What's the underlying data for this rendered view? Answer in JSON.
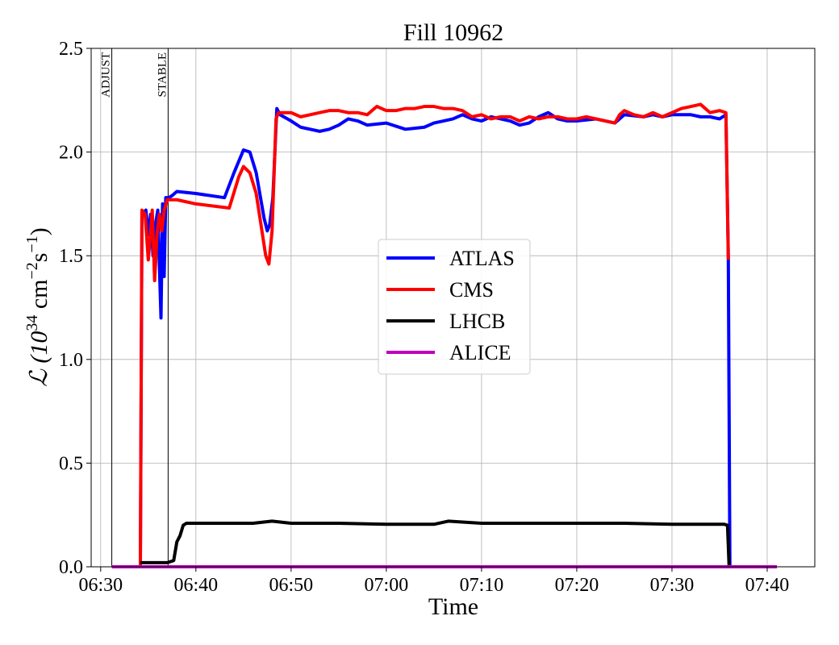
{
  "chart_data": {
    "type": "line",
    "title": "Fill 10962",
    "xlabel": "Time",
    "ylabel": {
      "main": "ℒ (10",
      "exp1": "34",
      "mid": " cm",
      "exp2": "−2",
      "mid2": "s",
      "exp3": "−1",
      "end": ")"
    },
    "xlim": [
      "06:29",
      "07:45"
    ],
    "ylim": [
      0,
      2.5
    ],
    "grid": true,
    "legend_position": "center-right",
    "x_ticks": [
      "06:30",
      "06:40",
      "06:50",
      "07:00",
      "07:10",
      "07:20",
      "07:30",
      "07:40"
    ],
    "y_ticks": [
      "0.0",
      "0.5",
      "1.0",
      "1.5",
      "2.0",
      "2.5"
    ],
    "annotations": [
      {
        "time": "06:31:10",
        "label": "ADJUST"
      },
      {
        "time": "06:37:05",
        "label": "STABLE"
      }
    ],
    "series": [
      {
        "name": "ATLAS",
        "color": "#0000ff",
        "points": [
          [
            "06:34:10",
            0.0
          ],
          [
            "06:34:20",
            1.7
          ],
          [
            "06:34:45",
            1.72
          ],
          [
            "06:35:00",
            1.6
          ],
          [
            "06:35:15",
            1.7
          ],
          [
            "06:35:30",
            1.5
          ],
          [
            "06:35:45",
            1.65
          ],
          [
            "06:36:00",
            1.72
          ],
          [
            "06:36:10",
            1.45
          ],
          [
            "06:36:20",
            1.2
          ],
          [
            "06:36:30",
            1.75
          ],
          [
            "06:36:40",
            1.4
          ],
          [
            "06:36:50",
            1.78
          ],
          [
            "06:37:10",
            1.78
          ],
          [
            "06:37:30",
            1.79
          ],
          [
            "06:38:00",
            1.81
          ],
          [
            "06:40:00",
            1.8
          ],
          [
            "06:43:00",
            1.78
          ],
          [
            "06:44:00",
            1.9
          ],
          [
            "06:45:00",
            2.01
          ],
          [
            "06:45:40",
            2.0
          ],
          [
            "06:46:20",
            1.9
          ],
          [
            "06:47:10",
            1.68
          ],
          [
            "06:47:30",
            1.62
          ],
          [
            "06:47:45",
            1.65
          ],
          [
            "06:48:05",
            1.78
          ],
          [
            "06:48:30",
            2.21
          ],
          [
            "06:48:50",
            2.18
          ],
          [
            "06:50:00",
            2.15
          ],
          [
            "06:51:00",
            2.12
          ],
          [
            "06:52:00",
            2.11
          ],
          [
            "06:53:00",
            2.1
          ],
          [
            "06:54:00",
            2.11
          ],
          [
            "06:55:00",
            2.13
          ],
          [
            "06:56:00",
            2.16
          ],
          [
            "06:57:00",
            2.15
          ],
          [
            "06:58:00",
            2.13
          ],
          [
            "07:00:00",
            2.14
          ],
          [
            "07:02:00",
            2.11
          ],
          [
            "07:04:00",
            2.12
          ],
          [
            "07:05:00",
            2.14
          ],
          [
            "07:06:00",
            2.15
          ],
          [
            "07:07:00",
            2.16
          ],
          [
            "07:08:00",
            2.18
          ],
          [
            "07:09:00",
            2.16
          ],
          [
            "07:10:00",
            2.15
          ],
          [
            "07:11:00",
            2.17
          ],
          [
            "07:12:00",
            2.16
          ],
          [
            "07:13:00",
            2.15
          ],
          [
            "07:14:00",
            2.13
          ],
          [
            "07:15:00",
            2.14
          ],
          [
            "07:16:00",
            2.17
          ],
          [
            "07:17:00",
            2.19
          ],
          [
            "07:18:00",
            2.16
          ],
          [
            "07:19:00",
            2.15
          ],
          [
            "07:20:00",
            2.15
          ],
          [
            "07:22:00",
            2.16
          ],
          [
            "07:24:00",
            2.14
          ],
          [
            "07:25:00",
            2.18
          ],
          [
            "07:27:00",
            2.17
          ],
          [
            "07:28:00",
            2.18
          ],
          [
            "07:29:00",
            2.17
          ],
          [
            "07:30:00",
            2.18
          ],
          [
            "07:32:00",
            2.18
          ],
          [
            "07:33:00",
            2.17
          ],
          [
            "07:34:00",
            2.17
          ],
          [
            "07:35:00",
            2.16
          ],
          [
            "07:35:40",
            2.18
          ],
          [
            "07:35:55",
            1.5
          ],
          [
            "07:36:05",
            0.0
          ],
          [
            "07:41:00",
            0.0
          ]
        ]
      },
      {
        "name": "CMS",
        "color": "#ff0000",
        "points": [
          [
            "06:34:10",
            0.0
          ],
          [
            "06:34:20",
            1.72
          ],
          [
            "06:34:40",
            1.7
          ],
          [
            "06:35:00",
            1.48
          ],
          [
            "06:35:15",
            1.62
          ],
          [
            "06:35:25",
            1.72
          ],
          [
            "06:35:40",
            1.38
          ],
          [
            "06:35:55",
            1.6
          ],
          [
            "06:36:10",
            1.7
          ],
          [
            "06:36:25",
            1.62
          ],
          [
            "06:36:40",
            1.72
          ],
          [
            "06:37:00",
            1.77
          ],
          [
            "06:38:00",
            1.77
          ],
          [
            "06:40:00",
            1.75
          ],
          [
            "06:43:30",
            1.73
          ],
          [
            "06:44:30",
            1.88
          ],
          [
            "06:45:00",
            1.93
          ],
          [
            "06:45:40",
            1.9
          ],
          [
            "06:46:20",
            1.8
          ],
          [
            "06:47:00",
            1.6
          ],
          [
            "06:47:20",
            1.5
          ],
          [
            "06:47:40",
            1.46
          ],
          [
            "06:48:00",
            1.62
          ],
          [
            "06:48:25",
            2.16
          ],
          [
            "06:48:40",
            2.19
          ],
          [
            "06:50:00",
            2.19
          ],
          [
            "06:51:00",
            2.17
          ],
          [
            "06:52:00",
            2.18
          ],
          [
            "06:53:00",
            2.19
          ],
          [
            "06:54:00",
            2.2
          ],
          [
            "06:55:00",
            2.2
          ],
          [
            "06:56:00",
            2.19
          ],
          [
            "06:57:00",
            2.19
          ],
          [
            "06:58:00",
            2.18
          ],
          [
            "06:59:00",
            2.22
          ],
          [
            "07:00:00",
            2.2
          ],
          [
            "07:01:00",
            2.2
          ],
          [
            "07:02:00",
            2.21
          ],
          [
            "07:03:00",
            2.21
          ],
          [
            "07:04:00",
            2.22
          ],
          [
            "07:05:00",
            2.22
          ],
          [
            "07:06:00",
            2.21
          ],
          [
            "07:07:00",
            2.21
          ],
          [
            "07:08:00",
            2.2
          ],
          [
            "07:09:00",
            2.17
          ],
          [
            "07:10:00",
            2.18
          ],
          [
            "07:11:00",
            2.16
          ],
          [
            "07:12:00",
            2.17
          ],
          [
            "07:13:00",
            2.17
          ],
          [
            "07:14:00",
            2.15
          ],
          [
            "07:15:00",
            2.17
          ],
          [
            "07:16:00",
            2.16
          ],
          [
            "07:17:00",
            2.17
          ],
          [
            "07:18:00",
            2.17
          ],
          [
            "07:19:00",
            2.16
          ],
          [
            "07:20:00",
            2.16
          ],
          [
            "07:21:00",
            2.17
          ],
          [
            "07:22:00",
            2.16
          ],
          [
            "07:23:00",
            2.15
          ],
          [
            "07:24:00",
            2.14
          ],
          [
            "07:24:30",
            2.18
          ],
          [
            "07:25:00",
            2.2
          ],
          [
            "07:26:00",
            2.18
          ],
          [
            "07:27:00",
            2.17
          ],
          [
            "07:28:00",
            2.19
          ],
          [
            "07:29:00",
            2.17
          ],
          [
            "07:30:00",
            2.19
          ],
          [
            "07:31:00",
            2.21
          ],
          [
            "07:32:00",
            2.22
          ],
          [
            "07:33:00",
            2.23
          ],
          [
            "07:34:00",
            2.19
          ],
          [
            "07:35:00",
            2.2
          ],
          [
            "07:35:40",
            2.19
          ],
          [
            "07:35:55",
            1.48
          ]
        ]
      },
      {
        "name": "LHCB",
        "color": "#000000",
        "points": [
          [
            "06:34:10",
            0.02
          ],
          [
            "06:35:00",
            0.02
          ],
          [
            "06:36:00",
            0.02
          ],
          [
            "06:37:00",
            0.02
          ],
          [
            "06:37:40",
            0.03
          ],
          [
            "06:38:00",
            0.12
          ],
          [
            "06:38:20",
            0.15
          ],
          [
            "06:38:40",
            0.2
          ],
          [
            "06:39:00",
            0.21
          ],
          [
            "06:42:00",
            0.21
          ],
          [
            "06:46:00",
            0.21
          ],
          [
            "06:48:00",
            0.22
          ],
          [
            "06:50:00",
            0.21
          ],
          [
            "06:55:00",
            0.21
          ],
          [
            "07:00:00",
            0.205
          ],
          [
            "07:05:00",
            0.205
          ],
          [
            "07:06:30",
            0.22
          ],
          [
            "07:10:00",
            0.21
          ],
          [
            "07:15:00",
            0.21
          ],
          [
            "07:20:00",
            0.21
          ],
          [
            "07:25:00",
            0.21
          ],
          [
            "07:30:00",
            0.205
          ],
          [
            "07:35:30",
            0.205
          ],
          [
            "07:35:50",
            0.2
          ],
          [
            "07:36:00",
            0.0
          ],
          [
            "07:41:00",
            0.0
          ]
        ]
      },
      {
        "name": "ALICE",
        "color": "#bf00bf",
        "points": [
          [
            "06:31:10",
            0.0
          ],
          [
            "07:41:00",
            0.0
          ]
        ]
      }
    ]
  }
}
